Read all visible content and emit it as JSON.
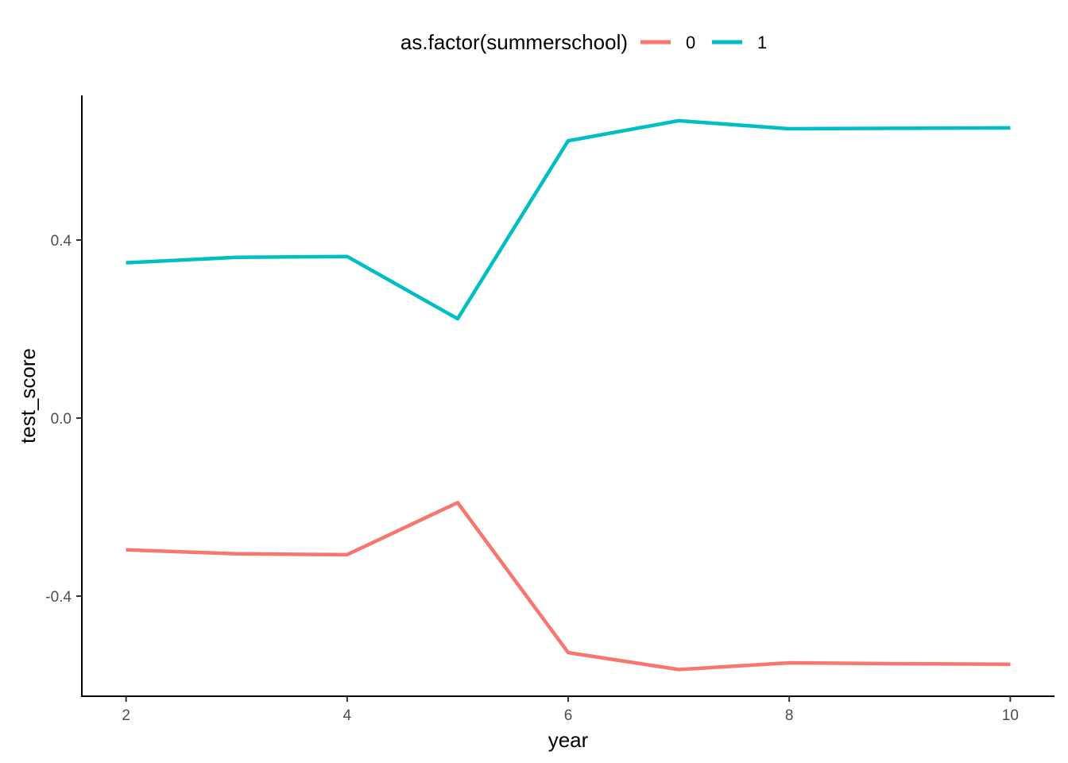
{
  "chart_data": {
    "type": "line",
    "xlabel": "year",
    "ylabel": "test_score",
    "x": [
      2,
      3,
      4,
      5,
      6,
      7,
      8,
      9,
      10
    ],
    "xlim": [
      1.6,
      10.4
    ],
    "ylim": [
      -0.625,
      0.725
    ],
    "xticks": [
      2,
      4,
      6,
      8,
      10
    ],
    "yticks": [
      -0.4,
      0.0,
      0.4
    ],
    "ytick_labels": [
      "-0.4",
      "0.0",
      "0.4"
    ],
    "grid": false,
    "legend": {
      "title": "as.factor(summerschool)",
      "position": "top"
    },
    "series": [
      {
        "name": "0",
        "color": "#F8766D",
        "values": [
          -0.296,
          -0.305,
          -0.307,
          -0.19,
          -0.527,
          -0.565,
          -0.55,
          -0.552,
          -0.553
        ]
      },
      {
        "name": "1",
        "color": "#00BFC4",
        "values": [
          0.349,
          0.361,
          0.363,
          0.223,
          0.623,
          0.668,
          0.65,
          0.651,
          0.652
        ]
      }
    ]
  }
}
